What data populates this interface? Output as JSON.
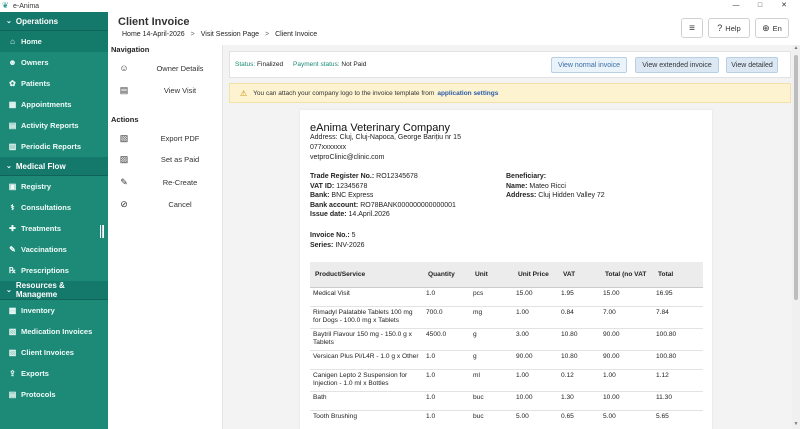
{
  "window": {
    "title": "e-Anima",
    "minimize": "—",
    "maximize": "□",
    "close": "✕"
  },
  "sidebar": {
    "sections": [
      {
        "label": "Operations"
      },
      {
        "label": "Medical Flow"
      },
      {
        "label": "Resources & Manageme"
      }
    ],
    "items": [
      {
        "label": "Home",
        "icon": "home-icon"
      },
      {
        "label": "Owners",
        "icon": "users-icon"
      },
      {
        "label": "Patients",
        "icon": "paw-icon"
      },
      {
        "label": "Appointments",
        "icon": "calendar-icon"
      },
      {
        "label": "Activity Reports",
        "icon": "chart-icon"
      },
      {
        "label": "Periodic Reports",
        "icon": "report-icon"
      },
      {
        "label": "Registry",
        "icon": "book-icon"
      },
      {
        "label": "Consultations",
        "icon": "stethoscope-icon"
      },
      {
        "label": "Treatments",
        "icon": "bandage-icon"
      },
      {
        "label": "Vaccinations",
        "icon": "syringe-icon"
      },
      {
        "label": "Prescriptions",
        "icon": "prescription-icon"
      },
      {
        "label": "Inventory",
        "icon": "box-icon"
      },
      {
        "label": "Medication Invoices",
        "icon": "invoice-icon"
      },
      {
        "label": "Client Invoices",
        "icon": "invoice-icon"
      },
      {
        "label": "Exports",
        "icon": "export-icon"
      },
      {
        "label": "Protocols",
        "icon": "protocol-icon"
      }
    ]
  },
  "header": {
    "title": "Client Invoice",
    "breadcrumb": [
      "Home 14-April-2026",
      "Visit Session Page",
      "Client Invoice"
    ],
    "breadcrumb_sep": ">",
    "help_label": "Help",
    "lang_label": "En"
  },
  "actions": {
    "nav_heading": "Navigation",
    "nav_items": [
      {
        "label": "Owner Details",
        "icon": "person-icon"
      },
      {
        "label": "View Visit",
        "icon": "document-icon"
      }
    ],
    "actions_heading": "Actions",
    "action_items": [
      {
        "label": "Export PDF",
        "icon": "pdf-icon"
      },
      {
        "label": "Set as Paid",
        "icon": "paid-icon"
      },
      {
        "label": "Re-Create",
        "icon": "edit-icon"
      },
      {
        "label": "Cancel",
        "icon": "cancel-icon"
      }
    ]
  },
  "status": {
    "status_key": "Status:",
    "status_val": "Finalized",
    "payment_key": "Payment status:",
    "payment_val": "Not Paid",
    "btn_normal": "View normal invoice",
    "btn_extended": "View extended invoice",
    "btn_detailed": "View detailed"
  },
  "alert": {
    "text": "You can attach your company logo to the invoice template from",
    "link": "application settings"
  },
  "invoice": {
    "company": "eAnima Veterinary Company",
    "address": "Address: Cluj, Cluj-Napoca, George Barițiu nr 15",
    "phone": "077xxxxxxx",
    "email": "vetproClinic@clinic.com",
    "trade_label": "Trade Register No.:",
    "trade_val": "RO12345678",
    "vat_label": "VAT ID:",
    "vat_val": "12345678",
    "bank_label": "Bank:",
    "bank_val": "BNC Express",
    "account_label": "Bank account:",
    "account_val": "RO78BANK000000000000001",
    "issue_label": "Issue date:",
    "issue_val": "14.April.2026",
    "beneficiary_label": "Beneficiary:",
    "name_label": "Name:",
    "name_val": "Mateo Ricci",
    "addr_label": "Address:",
    "addr_val": "Cluj Hidden Valley 72",
    "invoice_no_label": "Invoice No.:",
    "invoice_no_val": "5",
    "series_label": "Series:",
    "series_val": "INV-2026",
    "columns": [
      "Product/Service",
      "Quantity",
      "Unit",
      "Unit Price",
      "VAT",
      "Total (no VAT",
      "Total"
    ],
    "rows": [
      [
        "Medical Visit",
        "1.0",
        "pcs",
        "15.00",
        "1.95",
        "15.00",
        "16.95"
      ],
      [
        "Rimadyl Palatable Tablets 100 mg for Dogs - 100.0 mg x Tablets",
        "700.0",
        "mg",
        "1.00",
        "0.84",
        "7.00",
        "7.84"
      ],
      [
        "Baytril Flavour 150 mg - 150.0 g x Tablets",
        "4500.0",
        "g",
        "3.00",
        "10.80",
        "90.00",
        "100.80"
      ],
      [
        "Versican Plus Pi/L4R - 1.0 g x Other",
        "1.0",
        "g",
        "90.00",
        "10.80",
        "90.00",
        "100.80"
      ],
      [
        "Canigen Lepto 2 Suspension for Injection - 1.0 ml x Bottles",
        "1.0",
        "ml",
        "1.00",
        "0.12",
        "1.00",
        "1.12"
      ],
      [
        "Bath",
        "1.0",
        "buc",
        "10.00",
        "1.30",
        "10.00",
        "11.30"
      ],
      [
        "Tooth Brushing",
        "1.0",
        "buc",
        "5.00",
        "0.65",
        "5.00",
        "5.65"
      ]
    ]
  }
}
